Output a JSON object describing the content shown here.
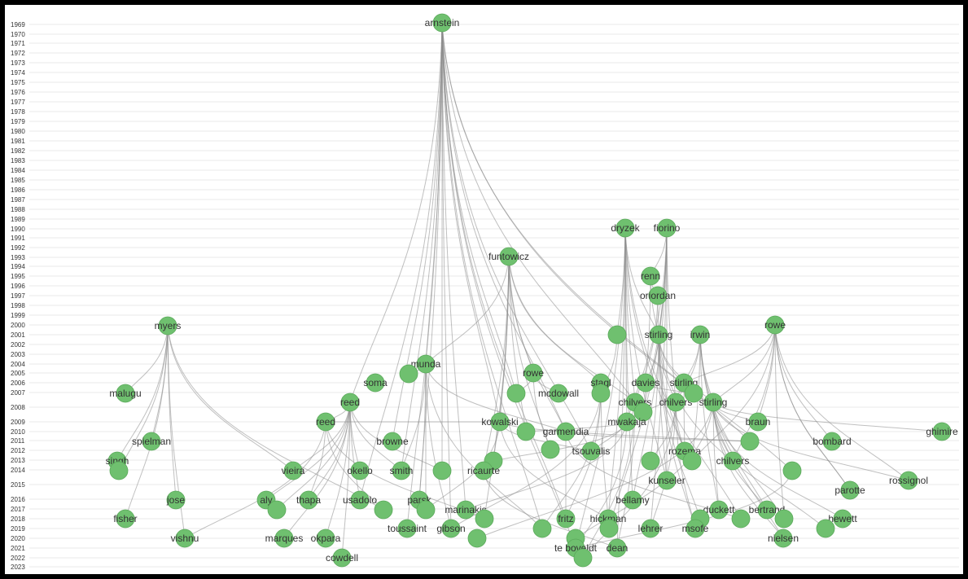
{
  "years": [
    "1969",
    "1970",
    "1971",
    "1972",
    "1973",
    "1974",
    "1975",
    "1976",
    "1977",
    "1978",
    "1979",
    "1980",
    "1981",
    "1982",
    "1983",
    "1984",
    "1985",
    "1986",
    "1987",
    "1988",
    "1989",
    "1990",
    "1991",
    "1992",
    "1993",
    "1994",
    "1995",
    "1996",
    "1997",
    "1998",
    "1999",
    "2000",
    "2001",
    "2002",
    "2003",
    "2004",
    "2005",
    "2006",
    "2007",
    "2008",
    "2009",
    "2010",
    "2011",
    "2012",
    "2013",
    "2014",
    "2015",
    "2016",
    "2017",
    "2018",
    "2019",
    "2020",
    "2021",
    "2022",
    "2023"
  ],
  "colors": {
    "node_fill": "#6fc06f",
    "edge": "#8c8c8c",
    "frame": "#000000"
  },
  "nodes": [
    {
      "id": "arnstein",
      "label": "arnstein"
    },
    {
      "id": "myers",
      "label": "myers"
    },
    {
      "id": "funtowicz",
      "label": "funtowicz"
    },
    {
      "id": "dryzek",
      "label": "dryzek"
    },
    {
      "id": "fiorino",
      "label": "fiorino"
    },
    {
      "id": "renn",
      "label": "renn"
    },
    {
      "id": "oriordan",
      "label": "oriordan"
    },
    {
      "id": "rowe_a",
      "label": "rowe"
    },
    {
      "id": "stirling_a",
      "label": "stirling"
    },
    {
      "id": "irwin",
      "label": "irwin"
    },
    {
      "id": "u1",
      "label": ""
    },
    {
      "id": "munda",
      "label": "munda"
    },
    {
      "id": "u2",
      "label": ""
    },
    {
      "id": "soma",
      "label": "soma"
    },
    {
      "id": "rowe_b",
      "label": "rowe"
    },
    {
      "id": "stagl",
      "label": "stagl"
    },
    {
      "id": "davies",
      "label": "davies"
    },
    {
      "id": "stirling_b",
      "label": "stirling"
    },
    {
      "id": "malugu",
      "label": "malugu"
    },
    {
      "id": "mcdowall",
      "label": "mcdowall"
    },
    {
      "id": "u3",
      "label": ""
    },
    {
      "id": "u4",
      "label": ""
    },
    {
      "id": "reed_a",
      "label": "reed"
    },
    {
      "id": "chilvers_a",
      "label": "chilvers"
    },
    {
      "id": "chilvers_b",
      "label": "chilvers"
    },
    {
      "id": "stirling_c",
      "label": "stirling"
    },
    {
      "id": "u5",
      "label": ""
    },
    {
      "id": "u6",
      "label": ""
    },
    {
      "id": "reed_b",
      "label": "reed"
    },
    {
      "id": "kowalski",
      "label": "kowalski"
    },
    {
      "id": "mwakaja",
      "label": "mwakaja"
    },
    {
      "id": "braun",
      "label": "braun"
    },
    {
      "id": "u7",
      "label": ""
    },
    {
      "id": "garmendia",
      "label": "garmendia"
    },
    {
      "id": "ghimire",
      "label": "ghimire"
    },
    {
      "id": "spielman",
      "label": "spielman"
    },
    {
      "id": "browne",
      "label": "browne"
    },
    {
      "id": "bombard",
      "label": "bombard"
    },
    {
      "id": "u8",
      "label": ""
    },
    {
      "id": "u9",
      "label": ""
    },
    {
      "id": "tsouvalis",
      "label": "tsouvalis"
    },
    {
      "id": "rozema",
      "label": "rozema"
    },
    {
      "id": "u10",
      "label": ""
    },
    {
      "id": "singh",
      "label": "singh"
    },
    {
      "id": "u11",
      "label": ""
    },
    {
      "id": "u12",
      "label": ""
    },
    {
      "id": "u13",
      "label": ""
    },
    {
      "id": "chilvers_c",
      "label": "chilvers"
    },
    {
      "id": "vieira",
      "label": "vieira"
    },
    {
      "id": "okello",
      "label": "okello"
    },
    {
      "id": "smith",
      "label": "smith"
    },
    {
      "id": "u14",
      "label": ""
    },
    {
      "id": "ricaurte",
      "label": "ricaurte"
    },
    {
      "id": "u15",
      "label": ""
    },
    {
      "id": "kunseler",
      "label": "kunseler"
    },
    {
      "id": "rossignol",
      "label": "rossignol"
    },
    {
      "id": "u16",
      "label": ""
    },
    {
      "id": "parotte",
      "label": "parotte"
    },
    {
      "id": "jose",
      "label": "jose"
    },
    {
      "id": "aly",
      "label": "aly"
    },
    {
      "id": "thapa",
      "label": "thapa"
    },
    {
      "id": "usadolo",
      "label": "usadolo"
    },
    {
      "id": "parsk",
      "label": "parsk"
    },
    {
      "id": "bellamy",
      "label": "bellamy"
    },
    {
      "id": "u17",
      "label": ""
    },
    {
      "id": "u18",
      "label": ""
    },
    {
      "id": "marinakis",
      "label": "marinakis"
    },
    {
      "id": "duckett",
      "label": "duckett"
    },
    {
      "id": "bertrand",
      "label": "bertrand"
    },
    {
      "id": "u19",
      "label": ""
    },
    {
      "id": "fisher",
      "label": "fisher"
    },
    {
      "id": "fritz",
      "label": "fritz"
    },
    {
      "id": "hickman",
      "label": "hickman"
    },
    {
      "id": "hewett",
      "label": "hewett"
    },
    {
      "id": "u20",
      "label": ""
    },
    {
      "id": "u21",
      "label": ""
    },
    {
      "id": "u22",
      "label": ""
    },
    {
      "id": "toussaint",
      "label": "toussaint"
    },
    {
      "id": "gibson",
      "label": "gibson"
    },
    {
      "id": "u23",
      "label": ""
    },
    {
      "id": "lehrer",
      "label": "lehrer"
    },
    {
      "id": "msofe",
      "label": "msofe"
    },
    {
      "id": "u24",
      "label": ""
    },
    {
      "id": "u25",
      "label": ""
    },
    {
      "id": "vishnu",
      "label": "vishnu"
    },
    {
      "id": "marques",
      "label": "marques"
    },
    {
      "id": "okpara",
      "label": "okpara"
    },
    {
      "id": "nielsen",
      "label": "nielsen"
    },
    {
      "id": "u26",
      "label": ""
    },
    {
      "id": "u27",
      "label": ""
    },
    {
      "id": "u28",
      "label": ""
    },
    {
      "id": "te_boveldt",
      "label": "te boveldt"
    },
    {
      "id": "dean",
      "label": "dean"
    },
    {
      "id": "cowdell",
      "label": "cowdell"
    },
    {
      "id": "u29",
      "label": ""
    }
  ],
  "edges": [
    [
      "arnstein",
      "munda"
    ],
    [
      "arnstein",
      "reed_a"
    ],
    [
      "arnstein",
      "kowalski"
    ],
    [
      "arnstein",
      "garmendia"
    ],
    [
      "arnstein",
      "browne"
    ],
    [
      "arnstein",
      "smith"
    ],
    [
      "arnstein",
      "parsk"
    ],
    [
      "arnstein",
      "toussaint"
    ],
    [
      "arnstein",
      "marinakis"
    ],
    [
      "arnstein",
      "fritz"
    ],
    [
      "arnstein",
      "u14"
    ],
    [
      "arnstein",
      "u9"
    ],
    [
      "arnstein",
      "u23"
    ],
    [
      "arnstein",
      "te_boveldt"
    ],
    [
      "arnstein",
      "chilvers_a"
    ],
    [
      "arnstein",
      "tsouvalis"
    ],
    [
      "arnstein",
      "usadolo"
    ],
    [
      "arnstein",
      "gibson"
    ],
    [
      "arnstein",
      "u3"
    ],
    [
      "arnstein",
      "u15"
    ],
    [
      "myers",
      "malugu"
    ],
    [
      "myers",
      "singh"
    ],
    [
      "myers",
      "u11"
    ],
    [
      "myers",
      "spielman"
    ],
    [
      "myers",
      "jose"
    ],
    [
      "myers",
      "fisher"
    ],
    [
      "myers",
      "vishnu"
    ],
    [
      "myers",
      "u18"
    ],
    [
      "myers",
      "vieira"
    ],
    [
      "funtowicz",
      "munda"
    ],
    [
      "funtowicz",
      "garmendia"
    ],
    [
      "funtowicz",
      "kowalski"
    ],
    [
      "funtowicz",
      "ricaurte"
    ],
    [
      "funtowicz",
      "rowe_b"
    ],
    [
      "funtowicz",
      "u7"
    ],
    [
      "funtowicz",
      "stagl"
    ],
    [
      "funtowicz",
      "u8"
    ],
    [
      "funtowicz",
      "u21"
    ],
    [
      "funtowicz",
      "chilvers_a"
    ],
    [
      "funtowicz",
      "u13"
    ],
    [
      "dryzek",
      "u1"
    ],
    [
      "dryzek",
      "stirling_a"
    ],
    [
      "dryzek",
      "chilvers_a"
    ],
    [
      "dryzek",
      "mwakaja"
    ],
    [
      "dryzek",
      "bellamy"
    ],
    [
      "dryzek",
      "hickman"
    ],
    [
      "dryzek",
      "u22"
    ],
    [
      "dryzek",
      "te_boveldt"
    ],
    [
      "dryzek",
      "dean"
    ],
    [
      "dryzek",
      "kunseler"
    ],
    [
      "dryzek",
      "rozema"
    ],
    [
      "fiorino",
      "stirling_a"
    ],
    [
      "fiorino",
      "chilvers_b"
    ],
    [
      "fiorino",
      "renn"
    ],
    [
      "fiorino",
      "u5"
    ],
    [
      "fiorino",
      "mwakaja"
    ],
    [
      "fiorino",
      "bellamy"
    ],
    [
      "fiorino",
      "lehrer"
    ],
    [
      "fiorino",
      "u24"
    ],
    [
      "fiorino",
      "kunseler"
    ],
    [
      "renn",
      "oriordan"
    ],
    [
      "renn",
      "stirling_a"
    ],
    [
      "renn",
      "davies"
    ],
    [
      "oriordan",
      "stirling_a"
    ],
    [
      "oriordan",
      "chilvers_a"
    ],
    [
      "rowe_a",
      "braun"
    ],
    [
      "rowe_a",
      "bombard"
    ],
    [
      "rowe_a",
      "stirling_c"
    ],
    [
      "rowe_a",
      "chilvers_c"
    ],
    [
      "rowe_a",
      "u16"
    ],
    [
      "rowe_a",
      "parotte"
    ],
    [
      "rowe_a",
      "rossignol"
    ],
    [
      "rowe_a",
      "u12"
    ],
    [
      "rowe_a",
      "stirling_b"
    ],
    [
      "rowe_a",
      "u25"
    ],
    [
      "stirling_a",
      "chilvers_b"
    ],
    [
      "stirling_a",
      "stirling_c"
    ],
    [
      "stirling_a",
      "davies"
    ],
    [
      "stirling_a",
      "u6"
    ],
    [
      "stirling_a",
      "rozema"
    ],
    [
      "stirling_a",
      "u10"
    ],
    [
      "stirling_a",
      "kunseler"
    ],
    [
      "stirling_a",
      "u19"
    ],
    [
      "stirling_a",
      "msofe"
    ],
    [
      "stirling_a",
      "u26"
    ],
    [
      "irwin",
      "stirling_b"
    ],
    [
      "irwin",
      "chilvers_b"
    ],
    [
      "irwin",
      "u12"
    ],
    [
      "irwin",
      "duckett"
    ],
    [
      "irwin",
      "bertrand"
    ],
    [
      "irwin",
      "u25"
    ],
    [
      "irwin",
      "nielsen"
    ],
    [
      "irwin",
      "stirling_c"
    ],
    [
      "stirling_c",
      "braun"
    ],
    [
      "stirling_c",
      "chilvers_c"
    ],
    [
      "stirling_c",
      "duckett"
    ],
    [
      "stirling_c",
      "bertrand"
    ],
    [
      "stirling_c",
      "nielsen"
    ],
    [
      "stirling_c",
      "hewett"
    ],
    [
      "stirling_c",
      "u27"
    ],
    [
      "stirling_c",
      "u28"
    ],
    [
      "stirling_c",
      "rossignol"
    ],
    [
      "stirling_c",
      "ghimire"
    ],
    [
      "chilvers_b",
      "rozema"
    ],
    [
      "chilvers_b",
      "u10"
    ],
    [
      "chilvers_b",
      "msofe"
    ],
    [
      "chilvers_b",
      "lehrer"
    ],
    [
      "chilvers_b",
      "u29"
    ],
    [
      "chilvers_a",
      "tsouvalis"
    ],
    [
      "chilvers_a",
      "u29"
    ],
    [
      "chilvers_a",
      "dean"
    ],
    [
      "munda",
      "u2"
    ],
    [
      "munda",
      "smith"
    ],
    [
      "munda",
      "parsk"
    ],
    [
      "munda",
      "gibson"
    ],
    [
      "munda",
      "garmendia"
    ],
    [
      "munda",
      "u23"
    ],
    [
      "munda",
      "u20"
    ],
    [
      "reed_a",
      "reed_b"
    ],
    [
      "reed_a",
      "vieira"
    ],
    [
      "reed_a",
      "okello"
    ],
    [
      "reed_a",
      "thapa"
    ],
    [
      "reed_a",
      "usadolo"
    ],
    [
      "reed_a",
      "okpara"
    ],
    [
      "reed_a",
      "marques"
    ],
    [
      "reed_a",
      "cowdell"
    ],
    [
      "reed_a",
      "u17"
    ],
    [
      "reed_a",
      "aly"
    ],
    [
      "reed_a",
      "u14"
    ],
    [
      "reed_a",
      "smith"
    ],
    [
      "reed_b",
      "thapa"
    ],
    [
      "reed_b",
      "u18"
    ],
    [
      "reed_b",
      "vishnu"
    ],
    [
      "reed_b",
      "kowalski"
    ],
    [
      "reed_b",
      "u21"
    ],
    [
      "kowalski",
      "u9"
    ],
    [
      "kowalski",
      "tsouvalis"
    ],
    [
      "kowalski",
      "hickman"
    ],
    [
      "kowalski",
      "u20"
    ],
    [
      "garmendia",
      "u9"
    ],
    [
      "garmendia",
      "fritz"
    ],
    [
      "garmendia",
      "u22"
    ],
    [
      "mwakaja",
      "u7"
    ],
    [
      "mwakaja",
      "u13"
    ],
    [
      "mwakaja",
      "te_boveldt"
    ],
    [
      "mwakaja",
      "marinakis"
    ],
    [
      "u4",
      "u23"
    ],
    [
      "u4",
      "fritz"
    ],
    [
      "u4",
      "gibson"
    ],
    [
      "davies",
      "u5"
    ],
    [
      "davies",
      "u6"
    ],
    [
      "stirling_b",
      "u6"
    ],
    [
      "stirling_b",
      "u5"
    ],
    [
      "stirling_b",
      "rozema"
    ],
    [
      "rowe_b",
      "u3"
    ],
    [
      "rowe_b",
      "mcdowall"
    ],
    [
      "rowe_b",
      "u8"
    ],
    [
      "u1",
      "u4"
    ],
    [
      "stagl",
      "u4"
    ],
    [
      "stagl",
      "hickman"
    ],
    [
      "ricaurte",
      "dean"
    ],
    [
      "u15",
      "te_boveldt"
    ]
  ]
}
